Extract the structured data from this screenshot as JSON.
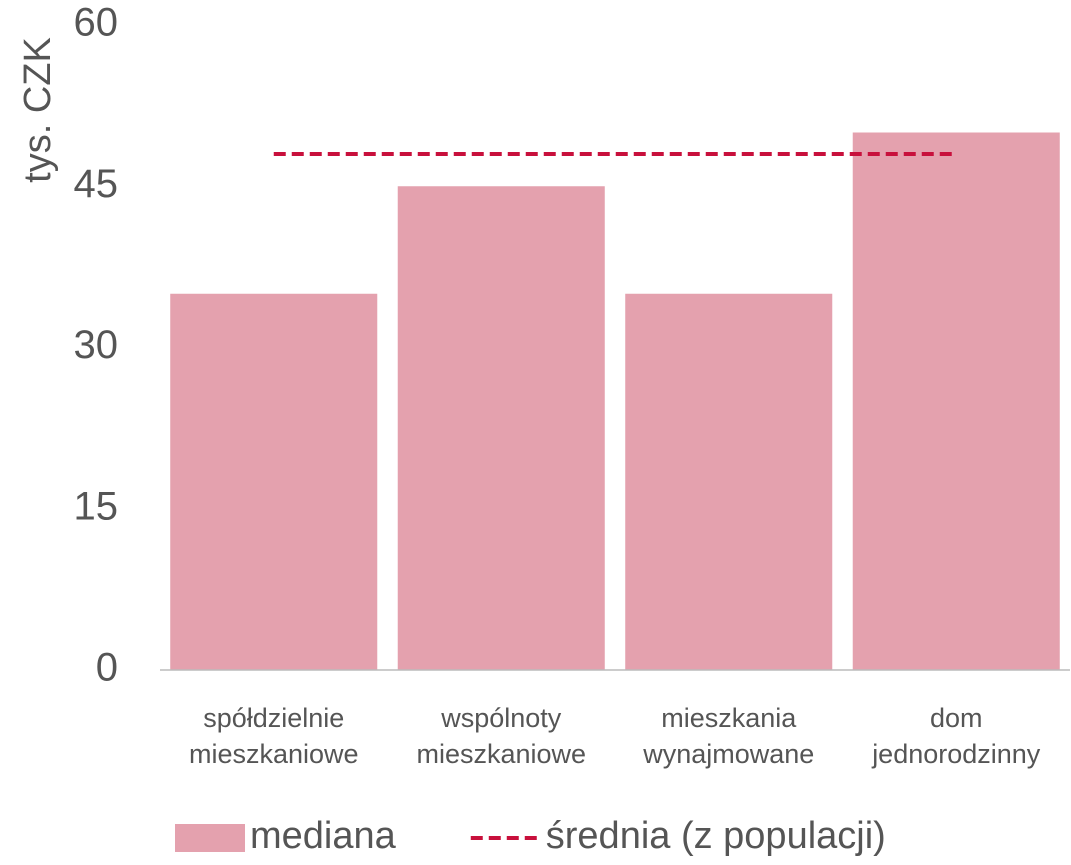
{
  "chart_data": {
    "type": "bar",
    "y_label": "tys. CZK",
    "categories": [
      [
        "spółdzielnie",
        "mieszkaniowe"
      ],
      [
        "wspólnoty",
        "mieszkaniowe"
      ],
      [
        "mieszkania",
        "wynajmowane"
      ],
      [
        "dom",
        "jednorodzinny"
      ]
    ],
    "series": [
      {
        "name": "mediana",
        "type": "bar",
        "color": "#e4a1ae",
        "values": [
          35,
          45,
          35,
          50
        ]
      },
      {
        "name": "średnia (z populacji)",
        "type": "line",
        "dashed": true,
        "color": "#c8103c",
        "values": [
          48,
          48,
          48,
          48
        ]
      }
    ],
    "ylim": [
      0,
      60
    ],
    "yticks": [
      0,
      15,
      30,
      45,
      60
    ],
    "grid": false,
    "legend": "bottom"
  }
}
